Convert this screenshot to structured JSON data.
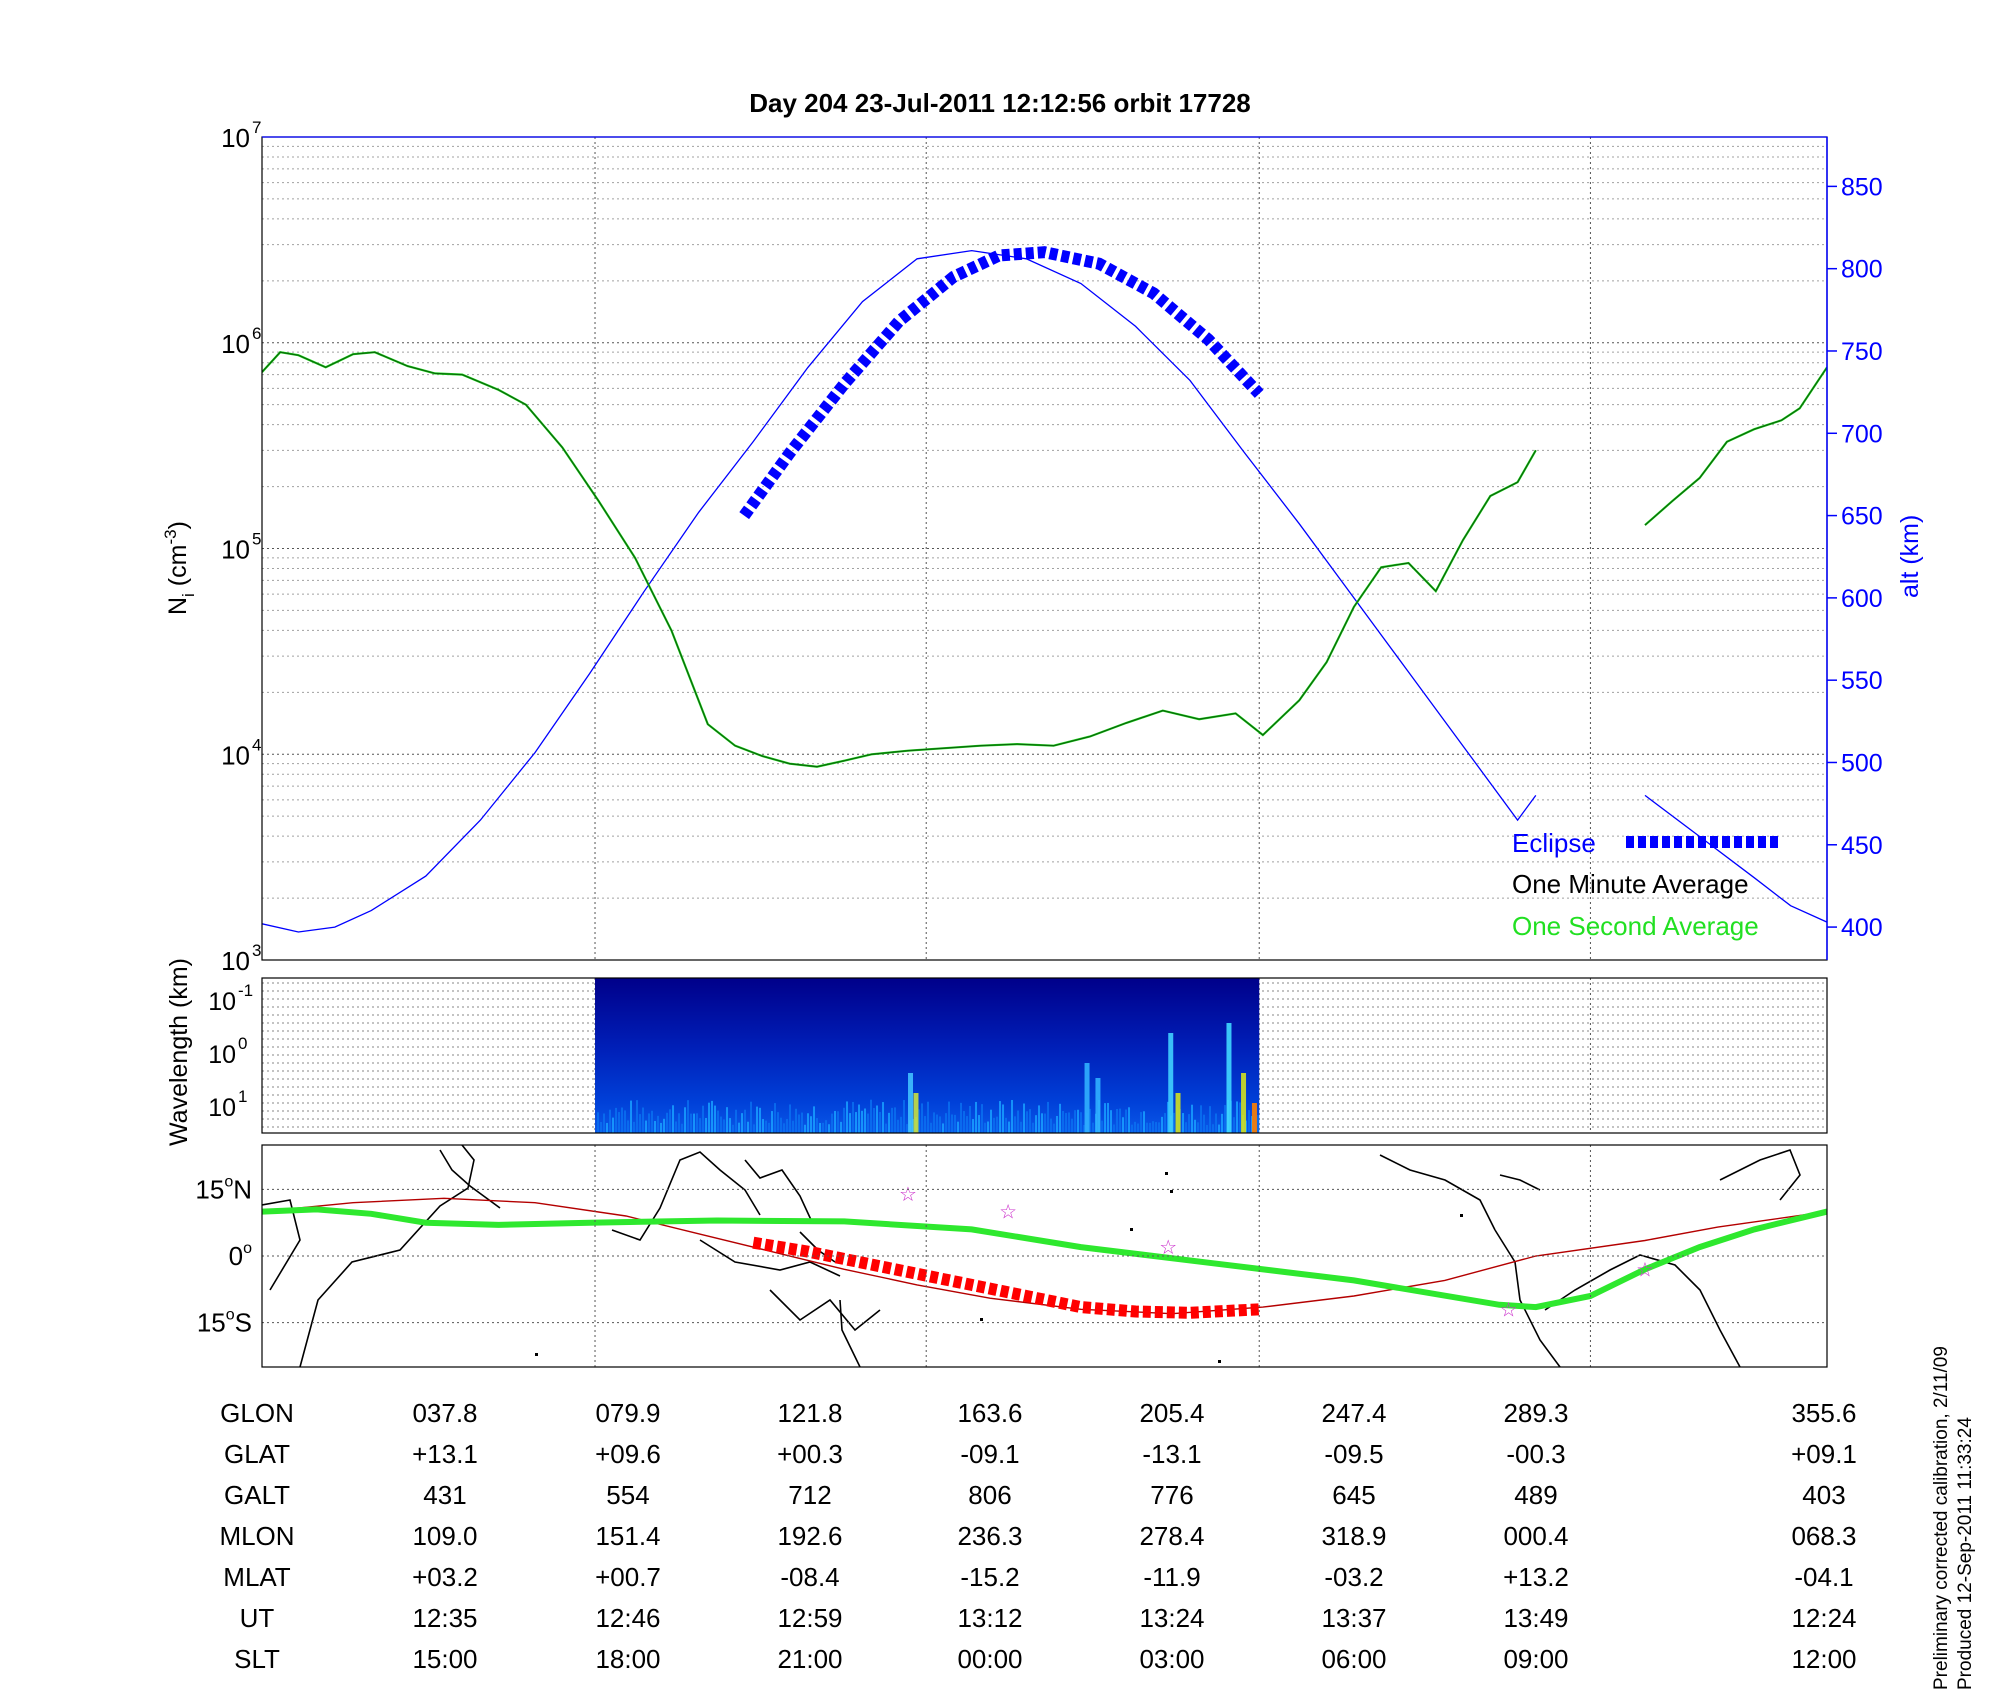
{
  "title": "Day 204  23-Jul-2011 12:12:56   orbit 17728",
  "footnote": {
    "line1": "Preliminary corrected calibration, 2/11/09",
    "line2": "Produced 12-Sep-2011 11:33:24"
  },
  "colors": {
    "density_minute": "#0a6b0a",
    "density_second": "#22e022",
    "altitude": "#0000ff",
    "eclipse": "#0000ff",
    "ground_track": "#2ee82e",
    "orbit_track": "#b40000",
    "eclipse_map": "#ff0000",
    "stars": "#cc33cc",
    "grid": "#555555"
  },
  "chart_data": [
    {
      "type": "line",
      "name": "ion density and altitude",
      "ylabel": "N",
      "ylabel_sub": "i",
      "ylabel_unit": "(cm",
      "ylabel_unit_exp": "-3",
      "ylabel_tail": ")",
      "yscale": "log",
      "ylim": [
        1000,
        10000000
      ],
      "y_ticks": [
        {
          "base": "10",
          "exp": "3",
          "value": 1000
        },
        {
          "base": "10",
          "exp": "4",
          "value": 10000
        },
        {
          "base": "10",
          "exp": "5",
          "value": 100000
        },
        {
          "base": "10",
          "exp": "6",
          "value": 1000000
        },
        {
          "base": "10",
          "exp": "7",
          "value": 10000000
        }
      ],
      "y2label": "alt (km)",
      "y2lim": [
        380,
        880
      ],
      "y2_ticks": [
        "400",
        "450",
        "500",
        "550",
        "600",
        "650",
        "700",
        "750",
        "800",
        "850"
      ],
      "xlim": [
        0,
        8.6
      ],
      "legend": {
        "placement": "bottom-right",
        "items": [
          "Eclipse",
          "One Minute Average",
          "One Second Average"
        ]
      },
      "series": [
        {
          "name": "One Minute Average",
          "x": [
            0,
            0.1,
            0.2,
            0.35,
            0.5,
            0.62,
            0.8,
            0.95,
            1.1,
            1.3,
            1.45,
            1.65,
            1.85,
            2.05,
            2.25,
            2.45,
            2.6,
            2.75,
            2.9,
            3.05,
            3.2,
            3.35,
            3.55,
            3.75,
            3.95,
            4.15,
            4.35,
            4.55,
            4.75,
            4.95,
            5.15,
            5.35,
            5.5,
            5.7,
            5.85,
            6.0,
            6.15,
            6.3,
            6.45,
            6.6,
            6.75,
            6.9,
            7.0
          ],
          "y": [
            720000,
            900000,
            870000,
            760000,
            880000,
            900000,
            770000,
            710000,
            700000,
            590000,
            500000,
            310000,
            170000,
            90000,
            40000,
            14000,
            11000,
            9800,
            9000,
            8700,
            9300,
            10000,
            10400,
            10700,
            11000,
            11200,
            11000,
            12200,
            14200,
            16300,
            14800,
            15800,
            12400,
            18300,
            28000,
            52000,
            81000,
            85000,
            62000,
            110000,
            180000,
            210000,
            300000
          ]
        },
        {
          "name": "One Minute Average (after gap)",
          "x": [
            7.6,
            7.75,
            7.9,
            8.05,
            8.2,
            8.35,
            8.45,
            8.6
          ],
          "y": [
            130000,
            170000,
            220000,
            330000,
            380000,
            420000,
            480000,
            760000
          ]
        },
        {
          "name": "altitude",
          "x": [
            0,
            0.2,
            0.4,
            0.6,
            0.9,
            1.2,
            1.5,
            1.8,
            2.1,
            2.4,
            2.7,
            3.0,
            3.3,
            3.6,
            3.9,
            4.2,
            4.5,
            4.8,
            5.1,
            5.4,
            5.7,
            6.0,
            6.3,
            6.6,
            6.9,
            7.0
          ],
          "y": [
            402,
            397,
            400,
            410,
            431,
            465,
            506,
            554,
            604,
            652,
            695,
            740,
            780,
            806,
            811,
            806,
            791,
            765,
            732,
            688,
            645,
            600,
            555,
            510,
            465,
            480
          ]
        },
        {
          "name": "altitude (after gap)",
          "x": [
            7.6,
            7.9,
            8.2,
            8.4,
            8.6
          ],
          "y": [
            480,
            455,
            430,
            413,
            403
          ]
        },
        {
          "name": "Eclipse",
          "x": [
            2.65,
            2.9,
            3.2,
            3.5,
            3.8,
            4.05,
            4.3,
            4.6,
            4.9,
            5.2,
            5.48
          ],
          "y": [
            650,
            688,
            730,
            768,
            795,
            808,
            810,
            803,
            785,
            757,
            724
          ]
        }
      ]
    },
    {
      "type": "heatmap",
      "name": "wavelength spectrogram",
      "ylabel": "Wavelength (km)",
      "y_ticks": [
        {
          "base": "10",
          "exp": "-1"
        },
        {
          "base": "10",
          "exp": "0"
        },
        {
          "base": "10",
          "exp": "1"
        }
      ],
      "x_data_range": [
        1.83,
        5.48
      ],
      "xlim": [
        0,
        8.6
      ]
    },
    {
      "type": "scatter",
      "name": "ground track map",
      "y_ticks": [
        "15",
        "0",
        "15"
      ],
      "y_tick_suffixes": [
        "N",
        "",
        "S"
      ],
      "ylim": [
        -25,
        25
      ],
      "xlim": [
        0,
        8.6
      ],
      "series": [
        {
          "name": "ground track",
          "x": [
            0,
            0.3,
            0.6,
            0.9,
            1.3,
            1.8,
            2.5,
            3.2,
            3.9,
            4.5,
            5.2,
            6.0,
            6.8,
            7.0,
            7.3,
            7.6,
            7.9,
            8.2,
            8.6
          ],
          "y": [
            10,
            10.5,
            9.5,
            7.5,
            7,
            7.5,
            8,
            7.8,
            6,
            2,
            -1.5,
            -5.5,
            -11,
            -11.5,
            -9,
            -3,
            2,
            6,
            10
          ]
        },
        {
          "name": "orbit track",
          "x": [
            0,
            0.5,
            1.0,
            1.5,
            2.0,
            2.4,
            2.8,
            3.2,
            3.6,
            4.0,
            4.5,
            5.0,
            5.5,
            6.0,
            6.5,
            7.0,
            7.6,
            8.0,
            8.6
          ],
          "y": [
            10,
            12,
            13,
            12,
            9,
            5,
            1,
            -3,
            -6.5,
            -9.5,
            -12,
            -13,
            -11.5,
            -9,
            -5.5,
            0,
            3.5,
            6.5,
            10
          ]
        },
        {
          "name": "Eclipse",
          "x": [
            2.7,
            3.0,
            3.3,
            3.6,
            3.9,
            4.2,
            4.5,
            4.8,
            5.1,
            5.48
          ],
          "y": [
            3,
            1,
            -1.5,
            -4,
            -6.5,
            -9,
            -11.5,
            -12.5,
            -12.8,
            -12
          ]
        },
        {
          "name": "stars",
          "x": [
            3.55,
            4.1,
            4.98,
            6.85,
            7.6
          ],
          "y": [
            14,
            10,
            2,
            -12,
            -3
          ]
        }
      ]
    },
    {
      "type": "table",
      "name": "orbit parameters",
      "rows": [
        {
          "label": "GLON",
          "values": [
            "037.8",
            "079.9",
            "121.8",
            "163.6",
            "205.4",
            "247.4",
            "289.3",
            "355.6"
          ]
        },
        {
          "label": "GLAT",
          "values": [
            "+13.1",
            "+09.6",
            "+00.3",
            "-09.1",
            "-13.1",
            "-09.5",
            "-00.3",
            "+09.1"
          ]
        },
        {
          "label": "GALT",
          "values": [
            "431",
            "554",
            "712",
            "806",
            "776",
            "645",
            "489",
            "403"
          ]
        },
        {
          "label": "MLON",
          "values": [
            "109.0",
            "151.4",
            "192.6",
            "236.3",
            "278.4",
            "318.9",
            "000.4",
            "068.3"
          ]
        },
        {
          "label": "MLAT",
          "values": [
            "+03.2",
            "+00.7",
            "-08.4",
            "-15.2",
            "-11.9",
            "-03.2",
            "+13.2",
            "-04.1"
          ]
        },
        {
          "label": "UT",
          "values": [
            "12:35",
            "12:46",
            "12:59",
            "13:12",
            "13:24",
            "13:37",
            "13:49",
            "12:24"
          ]
        },
        {
          "label": "SLT",
          "values": [
            "15:00",
            "18:00",
            "21:00",
            "00:00",
            "03:00",
            "06:00",
            "09:00",
            "12:00"
          ]
        }
      ]
    }
  ]
}
